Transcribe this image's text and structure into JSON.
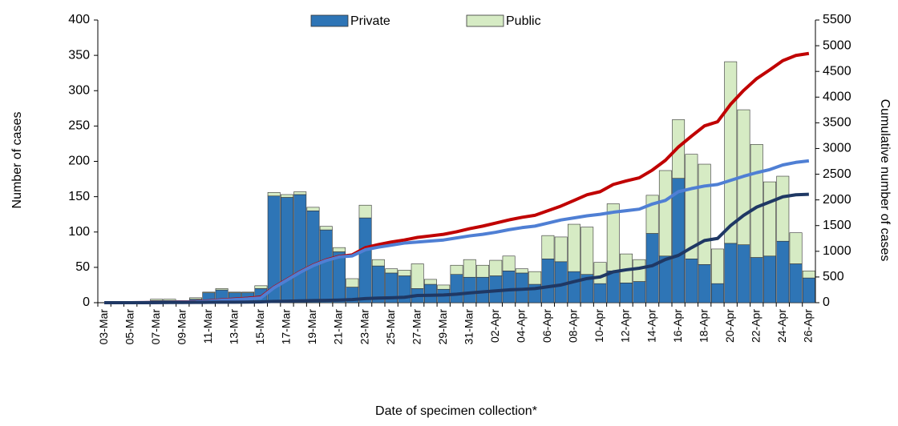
{
  "chart_data": {
    "type": "bar",
    "stacked": true,
    "x_label": "Date of specimen collection*",
    "y_label": "Number of cases",
    "y2_label": "Cumulative number of cases",
    "legend": "top",
    "categories": [
      "03-Mar",
      null,
      "05-Mar",
      null,
      "07-Mar",
      null,
      "09-Mar",
      null,
      "11-Mar",
      null,
      "13-Mar",
      null,
      "15-Mar",
      null,
      "17-Mar",
      null,
      "19-Mar",
      null,
      "21-Mar",
      null,
      "23-Mar",
      null,
      "25-Mar",
      null,
      "27-Mar",
      null,
      "29-Mar",
      null,
      "31-Mar",
      null,
      "02-Apr",
      null,
      "04-Apr",
      null,
      "06-Apr",
      null,
      "08-Apr",
      null,
      "10-Apr",
      null,
      "12-Apr",
      null,
      "14-Apr",
      null,
      "16-Apr",
      null,
      "18-Apr",
      null,
      "20-Apr",
      null,
      "22-Apr",
      null,
      "24-Apr",
      null,
      "26-Apr"
    ],
    "ylim": [
      0,
      400
    ],
    "yticks": [
      0,
      50,
      100,
      150,
      200,
      250,
      300,
      350,
      400
    ],
    "y2lim": [
      0,
      5500
    ],
    "y2ticks": [
      0,
      500,
      1000,
      1500,
      2000,
      2500,
      3000,
      3500,
      4000,
      4500,
      5000,
      5500
    ],
    "series": [
      {
        "name": "Private",
        "type": "bar",
        "color": "#2e75b6",
        "values": [
          0,
          0,
          0,
          1,
          3,
          3,
          2,
          5,
          14,
          18,
          14,
          14,
          20,
          151,
          149,
          153,
          130,
          103,
          72,
          22,
          120,
          52,
          42,
          38,
          20,
          26,
          19,
          40,
          36,
          36,
          38,
          45,
          42,
          26,
          62,
          58,
          44,
          40,
          27,
          45,
          28,
          30,
          98,
          66,
          176,
          62,
          54,
          27,
          84,
          82,
          64,
          66,
          87,
          55,
          35
        ]
      },
      {
        "name": "Public",
        "type": "bar",
        "color": "#d6ebc4",
        "values": [
          0,
          0,
          0,
          0,
          2,
          2,
          1,
          2,
          1,
          2,
          1,
          1,
          4,
          5,
          4,
          4,
          5,
          5,
          6,
          12,
          18,
          9,
          6,
          8,
          35,
          7,
          6,
          13,
          25,
          17,
          22,
          21,
          6,
          18,
          33,
          35,
          67,
          67,
          30,
          95,
          41,
          31,
          54,
          121,
          83,
          148,
          142,
          49,
          257,
          191,
          160,
          105,
          92,
          44,
          10
        ]
      },
      {
        "type": "line",
        "axis": "y2",
        "color": "#c00000",
        "values": [
          0,
          0,
          0,
          1,
          6,
          10,
          13,
          20,
          35,
          55,
          70,
          85,
          110,
          300,
          450,
          600,
          730,
          830,
          900,
          930,
          1070,
          1130,
          1180,
          1220,
          1270,
          1300,
          1330,
          1380,
          1440,
          1490,
          1550,
          1610,
          1660,
          1700,
          1790,
          1880,
          1990,
          2100,
          2160,
          2300,
          2370,
          2430,
          2580,
          2770,
          3030,
          3240,
          3440,
          3520,
          3860,
          4130,
          4360,
          4530,
          4710,
          4810,
          4850
        ]
      },
      {
        "type": "line",
        "axis": "y2",
        "color": "#4f7fd4",
        "values": [
          0,
          0,
          0,
          1,
          4,
          7,
          9,
          14,
          28,
          46,
          60,
          74,
          94,
          290,
          440,
          590,
          720,
          820,
          890,
          910,
          1030,
          1080,
          1120,
          1160,
          1180,
          1200,
          1220,
          1260,
          1300,
          1330,
          1370,
          1420,
          1460,
          1490,
          1550,
          1610,
          1650,
          1690,
          1720,
          1760,
          1790,
          1820,
          1920,
          1990,
          2160,
          2220,
          2270,
          2300,
          2380,
          2460,
          2530,
          2590,
          2680,
          2730,
          2760
        ]
      },
      {
        "type": "line",
        "axis": "y2",
        "color": "#1f3864",
        "values": [
          0,
          0,
          0,
          0,
          2,
          3,
          4,
          6,
          7,
          9,
          10,
          11,
          15,
          25,
          30,
          35,
          40,
          45,
          50,
          60,
          80,
          90,
          95,
          105,
          140,
          145,
          150,
          165,
          190,
          210,
          230,
          250,
          260,
          275,
          310,
          345,
          410,
          470,
          500,
          600,
          640,
          670,
          720,
          840,
          920,
          1070,
          1210,
          1250,
          1500,
          1700,
          1860,
          1960,
          2060,
          2100,
          2110
        ]
      }
    ]
  }
}
